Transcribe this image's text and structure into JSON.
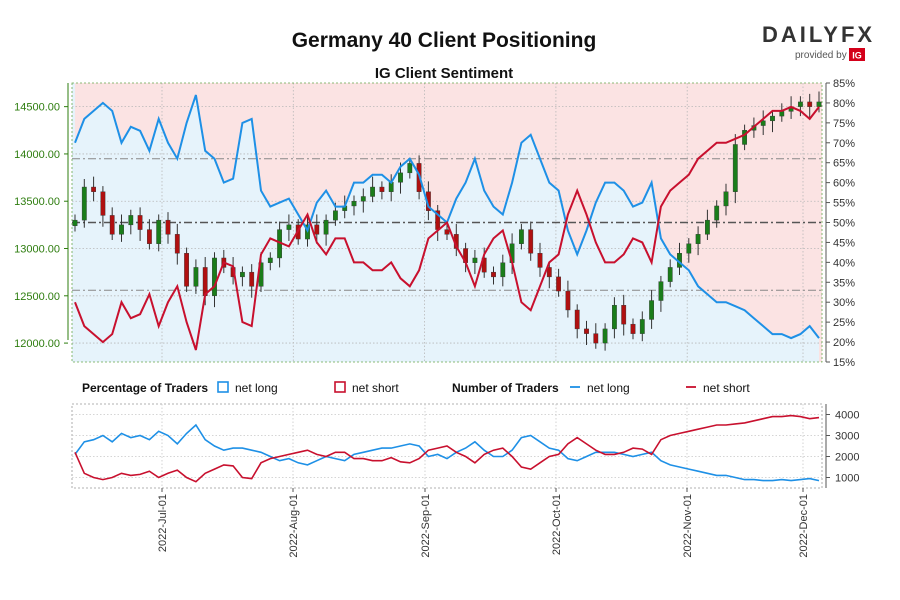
{
  "header": {
    "title": "Germany 40 Client Positioning",
    "subtitle": "IG Client Sentiment"
  },
  "brand": {
    "logo_text": "DAILYFX",
    "provided_by": "provided by",
    "ig_badge": "IG",
    "accent_color": "#d4001a"
  },
  "colors": {
    "net_long": "#1e90e6",
    "net_short": "#c8102e",
    "long_fill": "#e6f3fb",
    "short_fill": "#fbe3e3",
    "candle_up": "#1a7d1a",
    "candle_down": "#b01010",
    "price_axis": "#2e7d0f"
  },
  "legend": {
    "percentage_title": "Percentage of Traders",
    "number_title": "Number of Traders",
    "net_long": "net long",
    "net_short": "net short"
  },
  "chart_data": [
    {
      "type": "candlestick",
      "title": "Germany 40 Client Positioning",
      "subtitle": "IG Client Sentiment",
      "price_axis": {
        "side": "left",
        "ylim": [
          11800,
          14750
        ],
        "ticks": [
          "12000.00",
          "12500.00",
          "13000.00",
          "13500.00",
          "14000.00",
          "14500.00"
        ]
      },
      "percent_axis": {
        "side": "right",
        "ylim": [
          15,
          85
        ],
        "ticks": [
          "15%",
          "20%",
          "25%",
          "30%",
          "35%",
          "40%",
          "45%",
          "50%",
          "55%",
          "60%",
          "65%",
          "70%",
          "75%",
          "80%",
          "85%"
        ]
      },
      "reference_lines": [
        66,
        50,
        33
      ],
      "close_prices": [
        13300,
        13650,
        13600,
        13350,
        13150,
        13250,
        13350,
        13200,
        13050,
        13300,
        13150,
        12950,
        12600,
        12800,
        12500,
        12900,
        12800,
        12700,
        12750,
        12600,
        12850,
        12900,
        13200,
        13250,
        13100,
        13250,
        13150,
        13300,
        13400,
        13450,
        13500,
        13550,
        13650,
        13600,
        13700,
        13800,
        13900,
        13600,
        13400,
        13200,
        13150,
        13000,
        12850,
        12900,
        12750,
        12700,
        12850,
        13050,
        13200,
        12950,
        12800,
        12700,
        12550,
        12350,
        12150,
        12100,
        12000,
        12150,
        12400,
        12200,
        12100,
        12250,
        12450,
        12650,
        12800,
        12950,
        13050,
        13150,
        13300,
        13450,
        13600,
        14100,
        14250,
        14300,
        14350,
        14400,
        14450,
        14500,
        14550,
        14500,
        14550
      ],
      "series": [
        {
          "name": "net long",
          "values": [
            70,
            76,
            78,
            80,
            78,
            70,
            74,
            73,
            68,
            76,
            70,
            66,
            75,
            82,
            68,
            66,
            60,
            61,
            75,
            76,
            58,
            54,
            55,
            56,
            52,
            48,
            55,
            58,
            54,
            54,
            60,
            60,
            62,
            62,
            60,
            64,
            66,
            62,
            54,
            52,
            50,
            56,
            60,
            66,
            58,
            54,
            52,
            60,
            70,
            72,
            66,
            60,
            58,
            48,
            42,
            48,
            55,
            60,
            60,
            58,
            54,
            55,
            60,
            46,
            42,
            40,
            38,
            34,
            32,
            30,
            30,
            29,
            28,
            26,
            24,
            22,
            22,
            21,
            22,
            24,
            21
          ]
        },
        {
          "name": "net short",
          "values": [
            30,
            24,
            22,
            20,
            22,
            30,
            26,
            27,
            32,
            24,
            30,
            34,
            25,
            18,
            32,
            34,
            40,
            39,
            25,
            24,
            42,
            46,
            45,
            44,
            48,
            52,
            45,
            42,
            46,
            46,
            40,
            40,
            38,
            38,
            40,
            36,
            34,
            38,
            46,
            48,
            50,
            44,
            40,
            34,
            42,
            46,
            48,
            40,
            30,
            28,
            34,
            40,
            42,
            52,
            58,
            52,
            45,
            40,
            40,
            42,
            46,
            45,
            40,
            54,
            58,
            60,
            62,
            66,
            68,
            70,
            70,
            71,
            72,
            74,
            76,
            78,
            78,
            79,
            78,
            76,
            79
          ]
        }
      ]
    },
    {
      "type": "line",
      "ylim": [
        500,
        4500
      ],
      "ticks": [
        "1000",
        "2000",
        "3000",
        "4000"
      ],
      "x_ticks": [
        "2022-Jul-01",
        "2022-Aug-01",
        "2022-Sep-01",
        "2022-Oct-01",
        "2022-Nov-01",
        "2022-Dec-01"
      ],
      "series": [
        {
          "name": "net long",
          "values": [
            2100,
            2700,
            2800,
            3000,
            2700,
            3100,
            2900,
            3000,
            2800,
            3200,
            3000,
            2600,
            3100,
            3500,
            2800,
            2500,
            2300,
            2400,
            2400,
            2300,
            2200,
            2000,
            1800,
            1900,
            1700,
            1600,
            1800,
            2000,
            1900,
            1800,
            2100,
            2200,
            2300,
            2400,
            2400,
            2500,
            2600,
            2500,
            2000,
            2100,
            1900,
            2200,
            2400,
            2700,
            2300,
            2000,
            2000,
            2300,
            2900,
            3000,
            2700,
            2400,
            2300,
            1900,
            1800,
            2000,
            2200,
            2200,
            2200,
            2100,
            2000,
            2100,
            2200,
            1800,
            1600,
            1500,
            1400,
            1300,
            1200,
            1100,
            1100,
            1000,
            900,
            900,
            850,
            850,
            900,
            850,
            900,
            950,
            850
          ]
        },
        {
          "name": "net short",
          "values": [
            2200,
            1200,
            1000,
            900,
            1000,
            1200,
            1100,
            1150,
            1300,
            1000,
            1200,
            1350,
            1000,
            800,
            1200,
            1400,
            1600,
            1550,
            1000,
            950,
            1700,
            1900,
            2000,
            2100,
            2200,
            2300,
            2100,
            2000,
            2200,
            2200,
            1900,
            1900,
            1800,
            1800,
            1950,
            1750,
            1700,
            1900,
            2300,
            2400,
            2500,
            2200,
            2000,
            1700,
            2100,
            2300,
            2400,
            2000,
            1500,
            1400,
            1700,
            2000,
            2100,
            2600,
            2900,
            2600,
            2300,
            2100,
            2100,
            2200,
            2400,
            2350,
            2100,
            2800,
            3000,
            3100,
            3200,
            3300,
            3400,
            3500,
            3500,
            3550,
            3600,
            3700,
            3800,
            3900,
            3900,
            3950,
            3900,
            3800,
            3850
          ]
        }
      ]
    }
  ]
}
